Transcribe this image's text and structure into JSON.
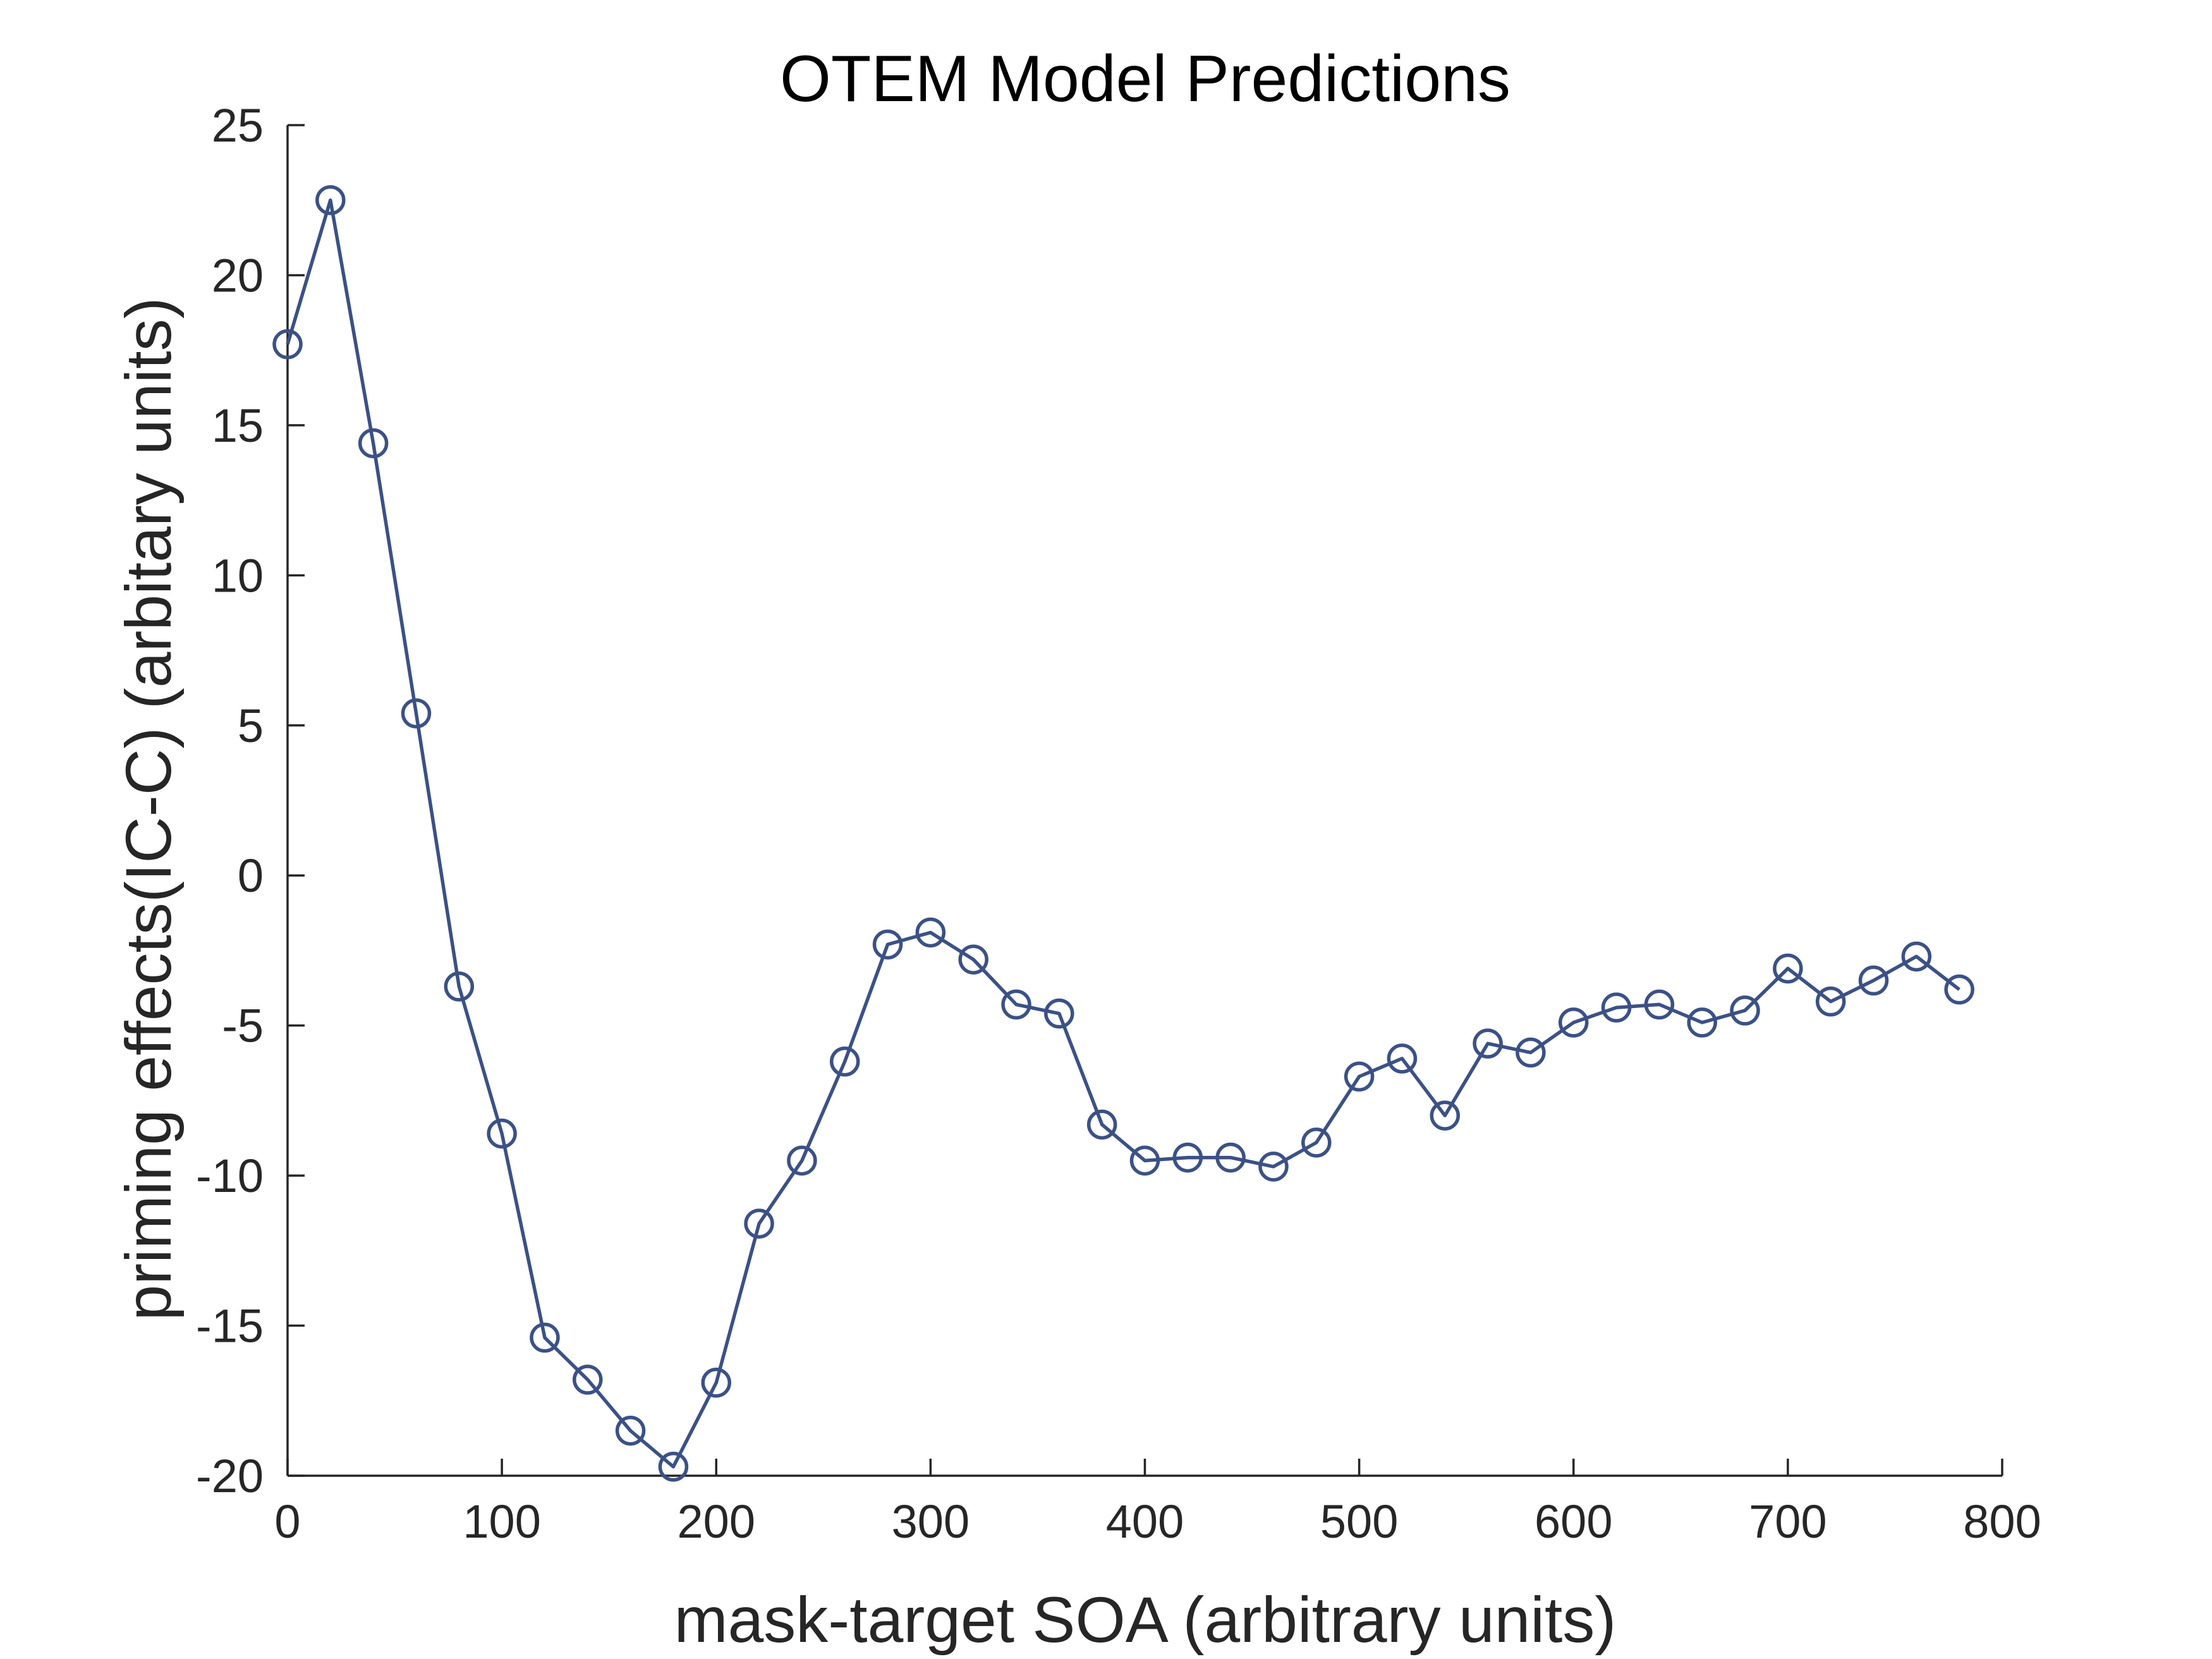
{
  "chart_data": {
    "type": "line",
    "title": "OTEM Model Predictions",
    "xlabel": "mask-target SOA (arbitrary units)",
    "ylabel": "priming effects(IC-C) (arbitary units)",
    "xlim": [
      0,
      800
    ],
    "ylim": [
      -20,
      25
    ],
    "xticks": [
      0,
      100,
      200,
      300,
      400,
      500,
      600,
      700,
      800
    ],
    "yticks": [
      -20,
      -15,
      -10,
      -5,
      0,
      5,
      10,
      15,
      20,
      25
    ],
    "grid": false,
    "line_color": "#3b5186",
    "marker": "circle-open",
    "series": [
      {
        "x": [
          0,
          20,
          40,
          60,
          80,
          100,
          120,
          140,
          160,
          180,
          200,
          220,
          240,
          260,
          280,
          300,
          320,
          340,
          360,
          380,
          400,
          420,
          440,
          460,
          480,
          500,
          520,
          540,
          560,
          580,
          600,
          620,
          640,
          660,
          680,
          700,
          720,
          740,
          760,
          780
        ],
        "values": [
          17.7,
          22.5,
          14.4,
          5.4,
          -3.7,
          -8.6,
          -15.4,
          -16.8,
          -18.5,
          -19.7,
          -16.9,
          -11.6,
          -9.5,
          -6.2,
          -2.3,
          -1.9,
          -2.8,
          -4.3,
          -4.6,
          -8.3,
          -9.5,
          -9.4,
          -9.4,
          -9.7,
          -8.9,
          -6.7,
          -6.1,
          -8.0,
          -5.6,
          -5.9,
          -4.9,
          -4.4,
          -4.3,
          -4.9,
          -4.5,
          -3.1,
          -4.2,
          -3.5,
          -2.7,
          -3.8
        ]
      }
    ]
  }
}
